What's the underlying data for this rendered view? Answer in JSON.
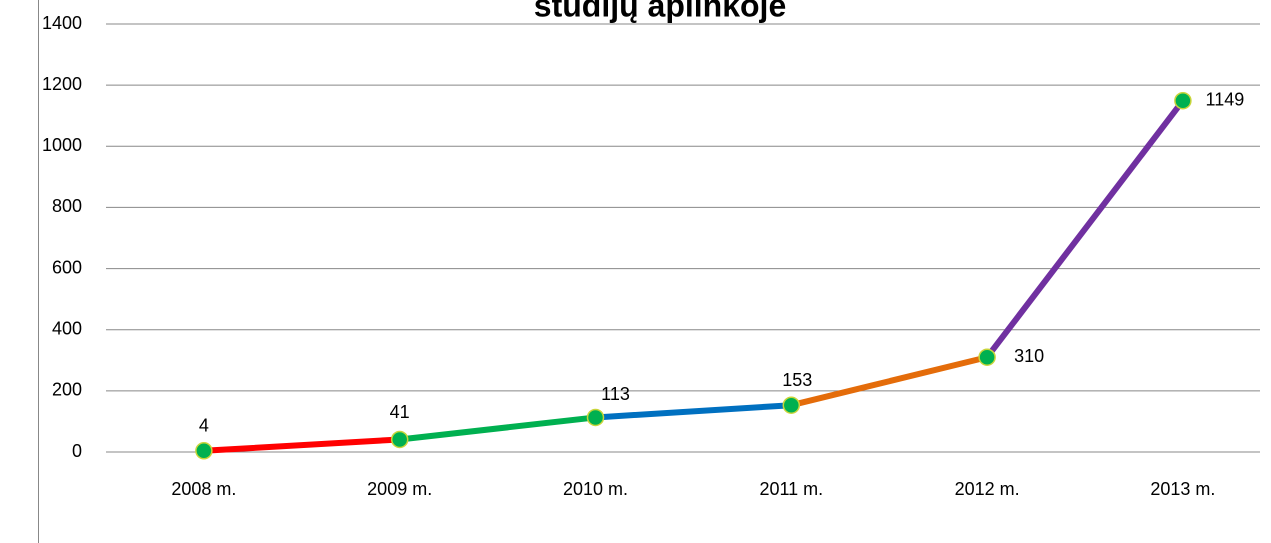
{
  "chart_data": {
    "type": "line",
    "title": "studijų aplinkoje",
    "categories": [
      "2008 m.",
      "2009 m.",
      "2010 m.",
      "2011 m.",
      "2012 m.",
      "2013 m."
    ],
    "values": [
      4,
      41,
      113,
      153,
      310,
      1149
    ],
    "segment_colors": [
      "#ff0000",
      "#00b050",
      "#0070c0",
      "#e46c0a",
      "#7030a0"
    ],
    "marker_color": "#00b050",
    "marker_edge_color": "#c9d53a",
    "ylim": [
      0,
      1400
    ],
    "yticks": [
      0,
      200,
      400,
      600,
      800,
      1000,
      1200,
      1400
    ],
    "grid": true
  }
}
